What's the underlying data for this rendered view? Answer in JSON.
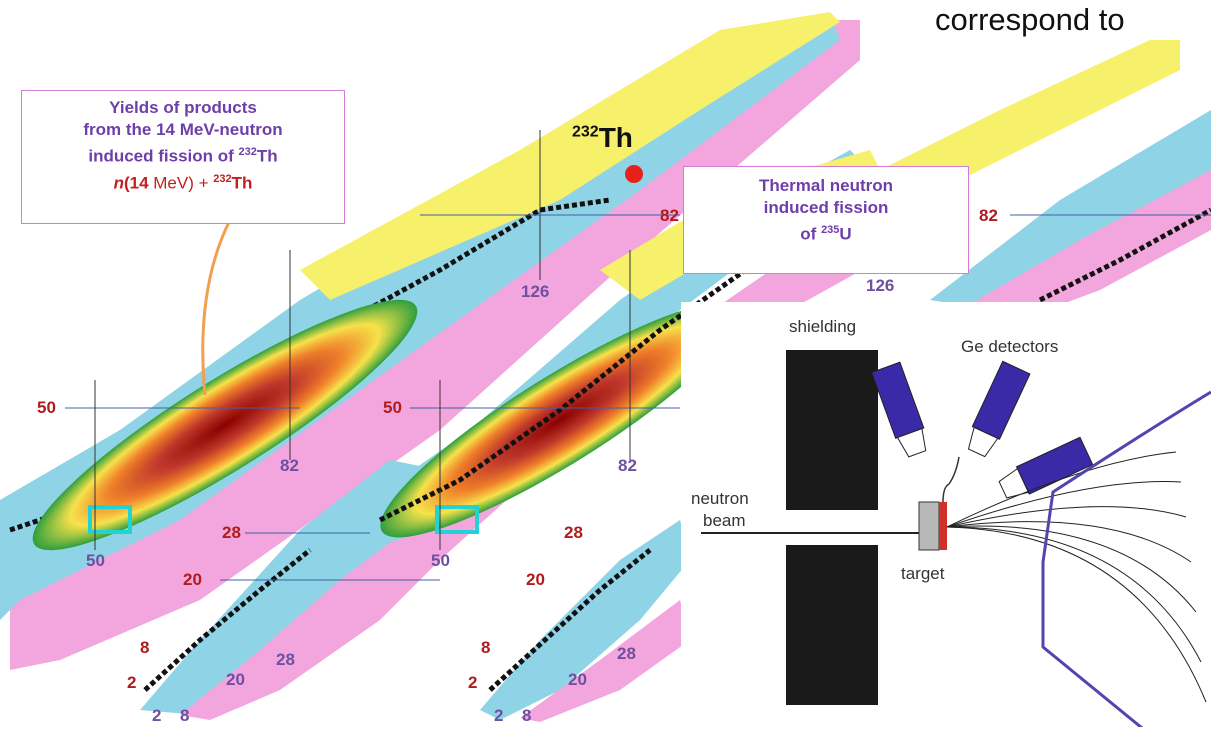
{
  "heading": "correspond to",
  "box_left": {
    "line1": "Yields of products",
    "line2": "from the 14 MeV-neutron",
    "line3_pre": "induced fission of ",
    "line3_sup": "232",
    "line3_post": "Th",
    "formula_n": "n",
    "formula_paren": "(14",
    "formula_mev": " MeV) + ",
    "formula_sup": "232",
    "formula_th": "Th"
  },
  "box_right": {
    "line1": "Thermal neutron",
    "line2": "induced fission",
    "line3_pre": "of ",
    "line3_sup": "235",
    "line3_post": "U"
  },
  "th_label": {
    "sup": "232",
    "text": "Th"
  },
  "magic_numbers": {
    "n126": "126",
    "n82": "82",
    "n50": "50",
    "n28": "28",
    "n20": "20",
    "n8": "8",
    "n2": "2"
  },
  "setup": {
    "shielding": "shielding",
    "ge_detectors": "Ge detectors",
    "neutron": "neutron",
    "beam": "beam",
    "target": "target"
  },
  "colors": {
    "stable": "#111111",
    "beta_minus": "#8fd3e6",
    "beta_plus": "#f2a6dd",
    "alpha": "#f7f06a",
    "fission": "#4ea35a",
    "yield_high": "#8b0000",
    "yield_mid": "#f0802a",
    "yield_low": "#f7e24a",
    "yield_edge": "#2e9e3c",
    "magic_red": "#b01c1c",
    "magic_purple": "#6f4fa0",
    "box_border": "#d27ad8",
    "detector": "#3a2aa8",
    "spectrometer": "#5544b0"
  }
}
